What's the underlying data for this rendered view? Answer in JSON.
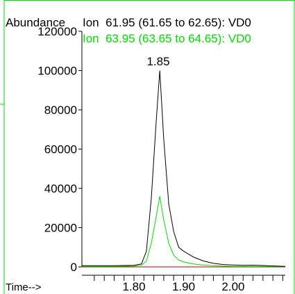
{
  "chart_data": {
    "type": "line",
    "ylabel": "Abundance",
    "xlabel": "Time-->",
    "series_labels": [
      "Ion  61.95 (61.65 to 62.65): VD0",
      "Ion  63.95 (63.65 to 64.65): VD0"
    ],
    "peak_label": "1.85",
    "xlim": [
      1.695,
      2.105
    ],
    "ylim": [
      0,
      120000
    ],
    "y_ticks": [
      0,
      20000,
      40000,
      60000,
      80000,
      100000,
      120000
    ],
    "y_tick_labels": [
      "0",
      "20000",
      "40000",
      "60000",
      "80000",
      "100000",
      "120000"
    ],
    "x_ticks": [
      1.8,
      1.9,
      2.0
    ],
    "x_tick_labels": [
      "1.80",
      "1.90",
      "2.00"
    ],
    "series": [
      {
        "color": "#000000",
        "x": [
          1.695,
          1.72,
          1.76,
          1.8,
          1.815,
          1.825,
          1.835,
          1.845,
          1.852,
          1.86,
          1.87,
          1.88,
          1.89,
          1.9,
          1.92,
          1.94,
          1.96,
          1.98,
          2.0,
          2.02,
          2.04,
          2.06,
          2.08,
          2.105
        ],
        "y": [
          600,
          600,
          600,
          800,
          1500,
          8000,
          35000,
          75000,
          100000,
          65000,
          32000,
          18000,
          10000,
          8000,
          5000,
          3000,
          1800,
          1200,
          1000,
          800,
          900,
          700,
          500,
          300
        ]
      },
      {
        "color": "#00dd00",
        "x": [
          1.695,
          1.72,
          1.76,
          1.8,
          1.815,
          1.825,
          1.835,
          1.845,
          1.852,
          1.86,
          1.87,
          1.88,
          1.89,
          1.9,
          1.92,
          1.94,
          1.96,
          1.98,
          2.0,
          2.05,
          2.105
        ],
        "y": [
          300,
          300,
          300,
          400,
          800,
          3000,
          12000,
          26000,
          36000,
          24000,
          12000,
          6000,
          3500,
          2500,
          1500,
          900,
          600,
          400,
          300,
          200,
          200
        ]
      },
      {
        "color": "#cc0000",
        "x": [
          1.695,
          2.105
        ],
        "y": [
          0,
          0
        ]
      }
    ]
  }
}
